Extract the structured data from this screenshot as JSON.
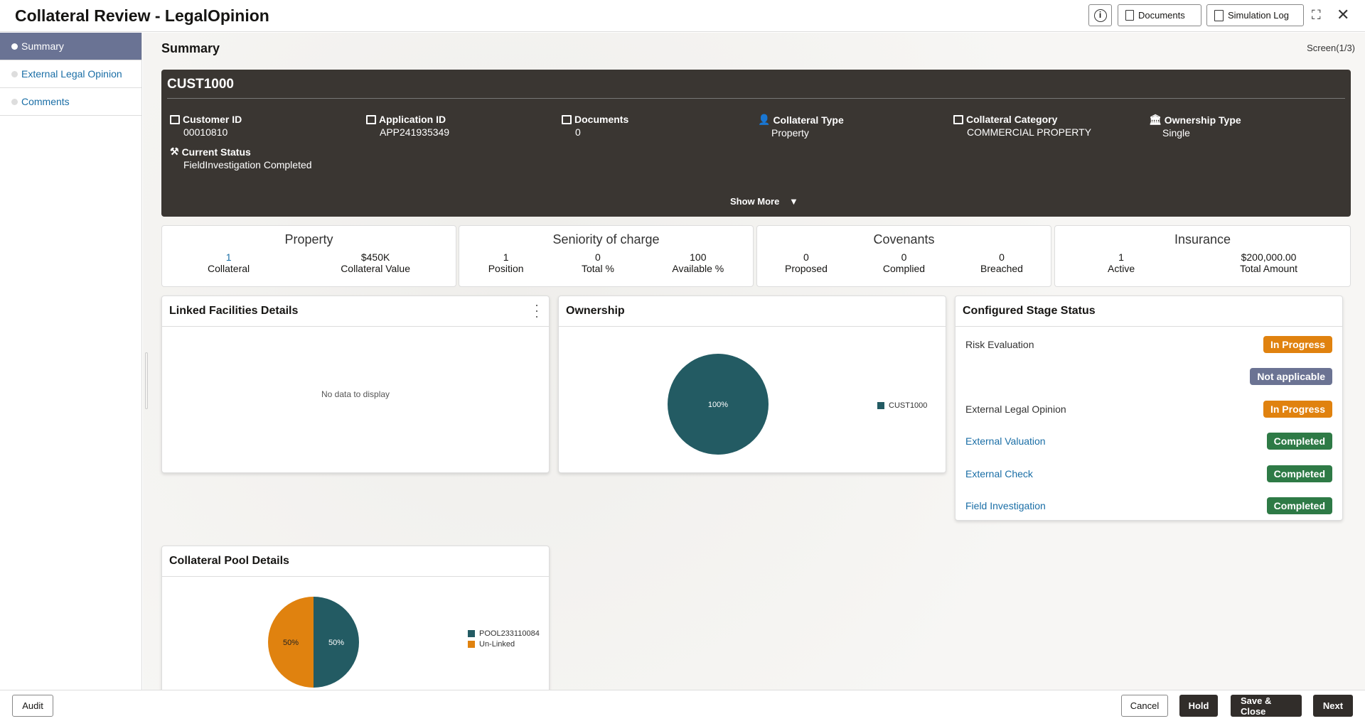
{
  "header": {
    "title": "Collateral Review - LegalOpinion",
    "info_icon": "info-icon",
    "documents_label": "Documents",
    "simulation_log_label": "Simulation Log"
  },
  "sidebar": {
    "items": [
      {
        "label": "Summary",
        "active": true
      },
      {
        "label": "External Legal Opinion"
      },
      {
        "label": "Comments"
      }
    ]
  },
  "page": {
    "title": "Summary",
    "screen": "Screen(1/3)"
  },
  "customer": {
    "name": "CUST1000",
    "fields": [
      {
        "label": "Customer ID",
        "value": "00010810",
        "icon": "id-card-icon"
      },
      {
        "label": "Application ID",
        "value": "APP241935349",
        "icon": "id-card-icon"
      },
      {
        "label": "Documents",
        "value": "0",
        "icon": "id-card-icon"
      },
      {
        "label": "Collateral Type",
        "value": "Property",
        "icon": "person-icon"
      },
      {
        "label": "Collateral Category",
        "value": "COMMERCIAL PROPERTY",
        "icon": "building-icon"
      },
      {
        "label": "Ownership Type",
        "value": "Single",
        "icon": "bank-icon"
      },
      {
        "label": "Current Status",
        "value": "FieldInvestigation Completed",
        "icon": "gavel-icon"
      }
    ],
    "show_more": "Show More"
  },
  "stats": [
    {
      "title": "Property",
      "items": [
        {
          "value": "1",
          "label": "Collateral"
        },
        {
          "value": "$450K",
          "label": "Collateral Value"
        }
      ]
    },
    {
      "title": "Seniority of charge",
      "items": [
        {
          "value": "1",
          "label": "Position"
        },
        {
          "value": "0",
          "label": "Total %"
        },
        {
          "value": "100",
          "label": "Available %"
        }
      ]
    },
    {
      "title": "Covenants",
      "items": [
        {
          "value": "0",
          "label": "Proposed"
        },
        {
          "value": "0",
          "label": "Complied"
        },
        {
          "value": "0",
          "label": "Breached"
        }
      ]
    },
    {
      "title": "Insurance",
      "items": [
        {
          "value": "1",
          "label": "Active"
        },
        {
          "value": "$200,000.00",
          "label": "Total Amount"
        }
      ]
    }
  ],
  "linked": {
    "title": "Linked Facilities Details",
    "empty": "No data to display"
  },
  "ownership": {
    "title": "Ownership",
    "slice_label": "100%",
    "legend": "CUST1000",
    "color": "#235b63"
  },
  "stages": {
    "title": "Configured Stage Status",
    "rows": [
      {
        "name": "Risk Evaluation",
        "status": "In Progress",
        "color": "#e0820f",
        "link": false
      },
      {
        "name": "",
        "status": "Not applicable",
        "color": "#6b7393",
        "link": false
      },
      {
        "name": "External Legal Opinion",
        "status": "In Progress",
        "color": "#e0820f",
        "link": false
      },
      {
        "name": "External Valuation",
        "status": "Completed",
        "color": "#2e7a46",
        "link": true
      },
      {
        "name": "External Check",
        "status": "Completed",
        "color": "#2e7a46",
        "link": true
      },
      {
        "name": "Field Investigation",
        "status": "Completed",
        "color": "#2e7a46",
        "link": true
      }
    ]
  },
  "pool": {
    "title": "Collateral Pool Details",
    "slices": [
      {
        "name": "POOL233110084",
        "label": "50%",
        "value": 50,
        "color": "#235b63"
      },
      {
        "name": "Un-Linked",
        "label": "50%",
        "value": 50,
        "color": "#e0820f"
      }
    ]
  },
  "footer": {
    "audit": "Audit",
    "cancel": "Cancel",
    "hold": "Hold",
    "save_close": "Save & Close",
    "next": "Next"
  }
}
